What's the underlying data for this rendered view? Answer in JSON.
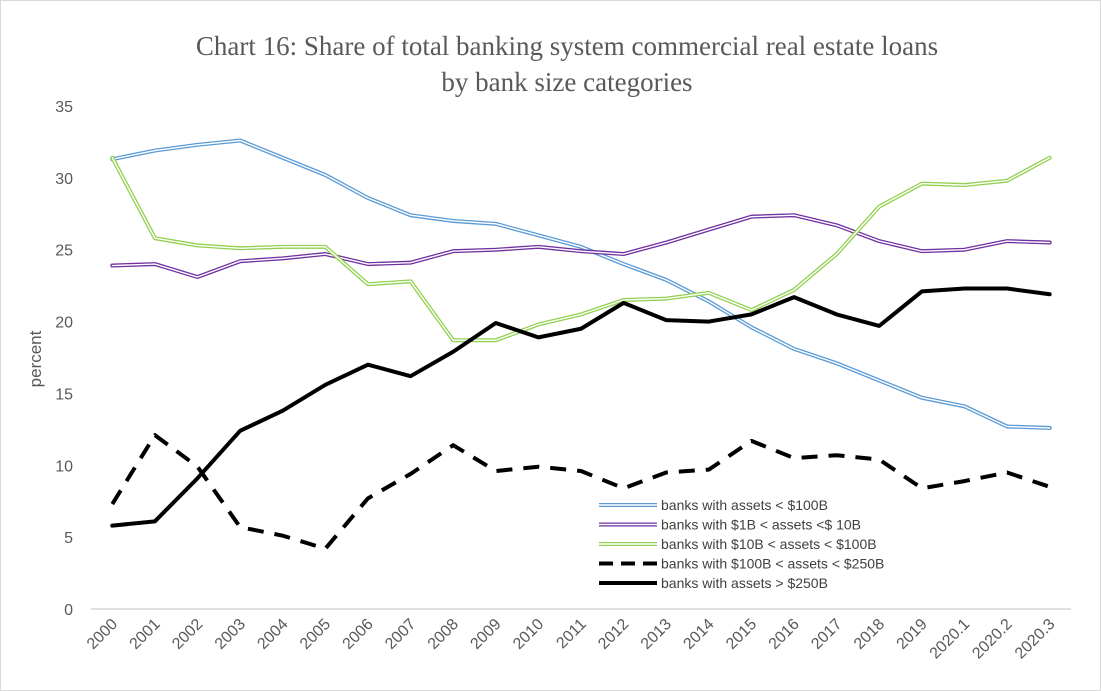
{
  "chart_data": {
    "type": "line",
    "title_lines": [
      "Chart 16: Share of total banking system commercial real estate loans",
      "by bank size categories"
    ],
    "xlabel": "",
    "ylabel": "percent",
    "ylim": [
      0,
      35
    ],
    "yticks": [
      0,
      5,
      10,
      15,
      20,
      25,
      30,
      35
    ],
    "categories": [
      "2000",
      "2001",
      "2002",
      "2003",
      "2004",
      "2005",
      "2006",
      "2007",
      "2008",
      "2009",
      "2010",
      "2011",
      "2012",
      "2013",
      "2014",
      "2015",
      "2016",
      "2017",
      "2018",
      "2019",
      "2020.1",
      "2020.2",
      "2020.3"
    ],
    "grid": false,
    "legend_position": "inside-bottom-right",
    "series": [
      {
        "name": "banks with assets < $100B",
        "color": "#5b9bd5",
        "style": "double",
        "values": [
          31.3,
          31.9,
          32.3,
          32.6,
          31.4,
          30.2,
          28.6,
          27.4,
          27.0,
          26.8,
          26.0,
          25.2,
          24.0,
          22.9,
          21.4,
          19.6,
          18.1,
          17.1,
          15.9,
          14.7,
          14.1,
          12.7,
          12.6
        ]
      },
      {
        "name": "banks with $1B < assets <$ 10B",
        "color": "#7030a0",
        "style": "double",
        "values": [
          23.9,
          24.0,
          23.1,
          24.2,
          24.4,
          24.7,
          24.0,
          24.1,
          24.9,
          25.0,
          25.2,
          24.9,
          24.7,
          25.5,
          26.4,
          27.3,
          27.4,
          26.7,
          25.6,
          24.9,
          25.0,
          25.6,
          25.5
        ]
      },
      {
        "name": "banks with $10B < assets < $100B",
        "color": "#92d050",
        "style": "double",
        "values": [
          31.4,
          25.8,
          25.3,
          25.1,
          25.2,
          25.2,
          22.6,
          22.8,
          18.7,
          18.7,
          19.8,
          20.5,
          21.5,
          21.6,
          22.0,
          20.8,
          22.2,
          24.7,
          28.0,
          29.6,
          29.5,
          29.8,
          31.4
        ]
      },
      {
        "name": "banks with $100B < assets < $250B",
        "color": "#000000",
        "style": "dashed",
        "values": [
          7.3,
          12.1,
          9.9,
          5.7,
          5.1,
          4.2,
          7.7,
          9.4,
          11.4,
          9.6,
          9.9,
          9.6,
          8.4,
          9.5,
          9.7,
          11.7,
          10.5,
          10.7,
          10.4,
          8.4,
          8.9,
          9.5,
          8.5
        ]
      },
      {
        "name": "banks with assets > $250B",
        "color": "#000000",
        "style": "solid",
        "values": [
          5.8,
          6.1,
          9.1,
          12.4,
          13.8,
          15.6,
          17.0,
          16.2,
          17.9,
          19.9,
          18.9,
          19.5,
          21.3,
          20.1,
          20.0,
          20.5,
          21.7,
          20.5,
          19.7,
          22.1,
          22.3,
          22.3,
          21.9
        ]
      }
    ]
  }
}
